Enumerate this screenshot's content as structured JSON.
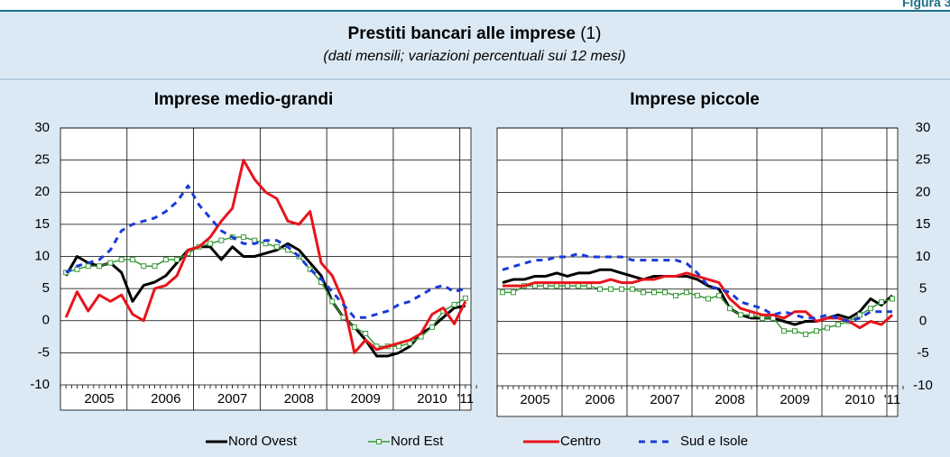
{
  "header": {
    "figure": "Figura 3.",
    "title": "Prestiti bancari alle imprese",
    "note": "(1)",
    "subtitle": "(dati mensili; variazioni percentuali sui 12 mesi)"
  },
  "chart_data": [
    {
      "type": "line",
      "title": "Imprese medio-grandi",
      "y_axis_side": "left",
      "grid": true,
      "ylim": [
        -10,
        30
      ],
      "yticks": [
        -10,
        -5,
        0,
        5,
        10,
        15,
        20,
        25,
        30
      ],
      "categories": [
        null,
        null,
        null,
        "2005",
        null,
        null,
        null,
        null,
        null,
        "2006",
        null,
        null,
        null,
        null,
        null,
        "2007",
        null,
        null,
        null,
        null,
        null,
        "2008",
        null,
        null,
        null,
        null,
        null,
        "2009",
        null,
        null,
        null,
        null,
        null,
        "2010",
        null,
        null,
        "'11"
      ],
      "series": [
        {
          "name": "Nord Ovest",
          "color": "#000000",
          "width": 3,
          "values": [
            7,
            10,
            9,
            8.5,
            9,
            7.5,
            3,
            5.5,
            6,
            7,
            9,
            11,
            11.5,
            11.5,
            9.5,
            11.5,
            10,
            10,
            10.5,
            11,
            12,
            11,
            9,
            7,
            3,
            0.5,
            -1,
            -3,
            -5.5,
            -5.5,
            -5,
            -4,
            -2,
            -1,
            0.5,
            2,
            2.3
          ]
        },
        {
          "name": "Nord Est",
          "color": "#3a9a3a",
          "width": 1.5,
          "marker": "square",
          "values": [
            7.5,
            8,
            8.5,
            8.5,
            9,
            9.5,
            9.5,
            8.5,
            8.5,
            9.5,
            9.5,
            10.5,
            11.5,
            12,
            12.5,
            13,
            13,
            12.5,
            12,
            11.5,
            11,
            10,
            8,
            6,
            3,
            0.5,
            -1,
            -2,
            -4,
            -4,
            -4,
            -3.5,
            -2.5,
            -1,
            1.5,
            2.5,
            3.5
          ]
        },
        {
          "name": "Centro",
          "color": "#e8141b",
          "width": 3,
          "values": [
            0.5,
            4.5,
            1.5,
            4,
            3,
            4,
            1,
            0,
            5,
            5.5,
            7,
            11,
            11.5,
            13,
            15.5,
            17.5,
            25,
            22,
            20,
            19,
            15.5,
            15,
            17,
            9,
            7,
            3,
            -5,
            -3,
            -4.5,
            -4,
            -3.5,
            -3,
            -2,
            1,
            2,
            -0.5,
            3
          ]
        },
        {
          "name": "Sud e Isole",
          "color": "#1a3adb",
          "width": 3,
          "dash": true,
          "values": [
            7.5,
            8.5,
            9,
            9.5,
            11,
            14,
            15,
            15.5,
            16,
            17,
            18.5,
            21,
            18,
            16,
            14,
            13,
            12,
            12,
            12.5,
            12.5,
            11.5,
            10,
            8,
            6.5,
            4.5,
            2.5,
            0.5,
            0.5,
            1,
            1.5,
            2.5,
            3,
            4,
            5,
            5.5,
            4.5,
            5
          ]
        }
      ]
    },
    {
      "type": "line",
      "title": "Imprese piccole",
      "y_axis_side": "right",
      "grid": true,
      "ylim": [
        -10,
        30
      ],
      "yticks": [
        -10,
        -5,
        0,
        5,
        10,
        15,
        20,
        25,
        30
      ],
      "categories": [
        null,
        null,
        null,
        "2005",
        null,
        null,
        null,
        null,
        null,
        "2006",
        null,
        null,
        null,
        null,
        null,
        "2007",
        null,
        null,
        null,
        null,
        null,
        "2008",
        null,
        null,
        null,
        null,
        null,
        "2009",
        null,
        null,
        null,
        null,
        null,
        "2010",
        null,
        null,
        "'11"
      ],
      "series": [
        {
          "color": "#000000",
          "width": 3,
          "values": [
            6,
            6.5,
            6.5,
            7,
            7,
            7.5,
            7,
            7.5,
            7.5,
            8,
            8,
            7.5,
            7,
            6.5,
            7,
            7,
            7,
            7,
            6.5,
            5.5,
            5,
            2,
            1,
            0.5,
            0.5,
            0.5,
            0,
            -0.5,
            0,
            0,
            0.5,
            1,
            0.5,
            1.5,
            3.5,
            2.5,
            4
          ]
        },
        {
          "color": "#3a9a3a",
          "width": 1.5,
          "marker": "square",
          "values": [
            4.5,
            4.5,
            5.5,
            5.5,
            5.5,
            5.5,
            5.5,
            5.5,
            5.5,
            5,
            5,
            5,
            5,
            4.5,
            4.5,
            4.5,
            4,
            4.5,
            4,
            3.5,
            4,
            2,
            1,
            1,
            0.5,
            0.5,
            -1.5,
            -1.5,
            -2,
            -1.5,
            -1,
            -0.5,
            0,
            1,
            2,
            3,
            3.5
          ]
        },
        {
          "color": "#e8141b",
          "width": 3,
          "values": [
            5.5,
            5.5,
            5.5,
            6,
            6,
            6,
            6,
            6,
            6,
            6,
            6.5,
            6,
            6,
            6.5,
            6.5,
            7,
            7,
            7.5,
            7,
            6.5,
            6,
            3.5,
            2,
            1.5,
            1,
            1,
            0.5,
            1.5,
            1.5,
            0,
            0.5,
            0.5,
            0,
            -1,
            0,
            -0.5,
            1
          ]
        },
        {
          "color": "#1a3adb",
          "width": 3,
          "dash": true,
          "values": [
            8,
            8.5,
            9,
            9.5,
            9.5,
            10,
            10,
            10.5,
            10,
            10,
            10,
            10,
            9.5,
            9.5,
            9.5,
            9.5,
            9.5,
            9,
            7.5,
            5.5,
            5,
            4.5,
            3,
            2.5,
            2,
            1,
            1.5,
            1,
            0.5,
            0.5,
            1,
            0.5,
            0,
            0.5,
            1.5,
            1.5,
            1.5
          ]
        }
      ]
    }
  ]
}
